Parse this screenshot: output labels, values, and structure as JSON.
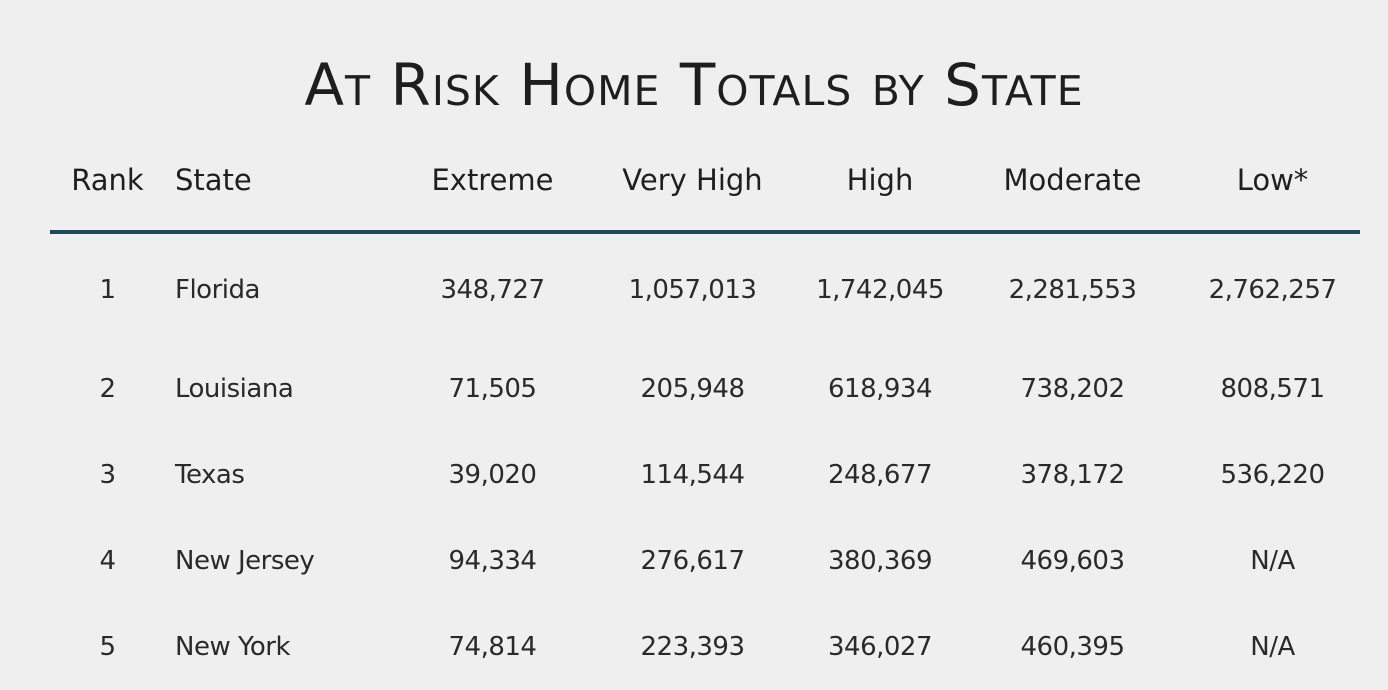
{
  "chart_data": {
    "type": "table",
    "title": "At Risk Home Totals by State",
    "columns": [
      "Rank",
      "State",
      "Extreme",
      "Very High",
      "High",
      "Moderate",
      "Low*"
    ],
    "rows": [
      [
        "1",
        "Florida",
        "348,727",
        "1,057,013",
        "1,742,045",
        "2,281,553",
        "2,762,257"
      ],
      [
        "2",
        "Louisiana",
        "71,505",
        "205,948",
        "618,934",
        "738,202",
        "808,571"
      ],
      [
        "3",
        "Texas",
        "39,020",
        "114,544",
        "248,677",
        "378,172",
        "536,220"
      ],
      [
        "4",
        "New Jersey",
        "94,334",
        "276,617",
        "380,369",
        "469,603",
        "N/A"
      ],
      [
        "5",
        "New York",
        "74,814",
        "223,393",
        "346,027",
        "460,395",
        "N/A"
      ]
    ],
    "colors": {
      "background": "#efefef",
      "header_rule": "#1d4a5c",
      "text": "#222222"
    }
  }
}
